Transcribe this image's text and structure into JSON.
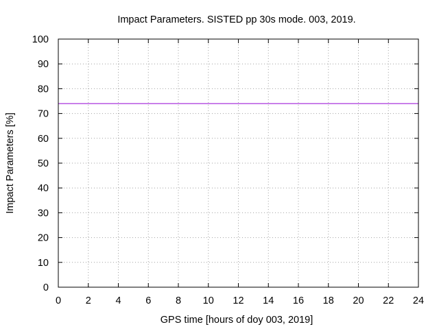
{
  "chart_data": {
    "type": "line",
    "title": "Impact Parameters. SISTED pp 30s mode. 003, 2019.",
    "xlabel": "GPS time [hours of doy 003, 2019]",
    "ylabel": "Impact Parameters [%]",
    "xlim": [
      0,
      24
    ],
    "ylim": [
      0,
      100
    ],
    "xticks": [
      0,
      2,
      4,
      6,
      8,
      10,
      12,
      14,
      16,
      18,
      20,
      22,
      24
    ],
    "yticks": [
      0,
      10,
      20,
      30,
      40,
      50,
      60,
      70,
      80,
      90,
      100
    ],
    "grid": true,
    "legend": "none",
    "series": [
      {
        "name": "Impact Parameters",
        "color": "#9400d3",
        "x": [
          0,
          24
        ],
        "y": [
          74,
          74
        ]
      }
    ]
  }
}
